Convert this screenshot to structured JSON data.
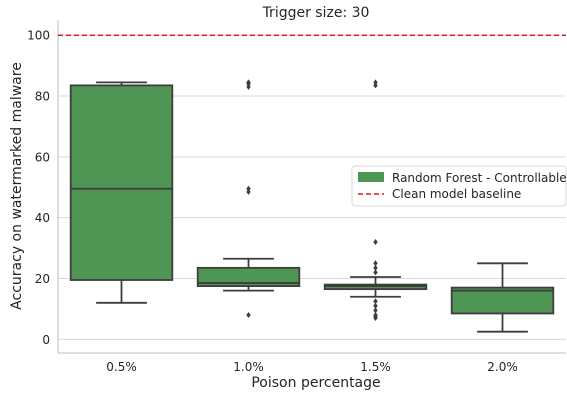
{
  "chart_data": {
    "type": "box",
    "title": "Trigger size: 30",
    "xlabel": "Poison percentage",
    "ylabel": "Accuracy on watermarked malware",
    "categories": [
      "0.5%",
      "1.0%",
      "1.5%",
      "2.0%"
    ],
    "ylim": [
      -4.5,
      105
    ],
    "yticks": [
      0,
      20,
      40,
      60,
      80,
      100
    ],
    "grid": "horizontal",
    "box_color": "#4f9553",
    "box_edge_color": "#3d3d3d",
    "series": [
      {
        "name": "Random Forest - Controllable",
        "boxes": [
          {
            "category": "0.5%",
            "whisker_low": 12,
            "q1": 19.5,
            "median": 49.5,
            "q3": 83.5,
            "whisker_high": 84.5,
            "outliers": []
          },
          {
            "category": "1.0%",
            "whisker_low": 16,
            "q1": 17.5,
            "median": 18.5,
            "q3": 23.5,
            "whisker_high": 26.5,
            "outliers": [
              8,
              48.5,
              49.5,
              83,
              84,
              84.5
            ]
          },
          {
            "category": "1.5%",
            "whisker_low": 14,
            "q1": 16.5,
            "median": 17.5,
            "q3": 18,
            "whisker_high": 20.5,
            "outliers": [
              7,
              7.5,
              8,
              9.5,
              11,
              12.5,
              22,
              23.5,
              25,
              32,
              83.5,
              84.5
            ]
          },
          {
            "category": "2.0%",
            "whisker_low": 2.5,
            "q1": 8.5,
            "median": 16,
            "q3": 17,
            "whisker_high": 25,
            "outliers": []
          }
        ]
      }
    ],
    "reference_line": {
      "name": "Clean model baseline",
      "y": 100,
      "color": "#e41a1c",
      "style": "dashed"
    },
    "legend": {
      "placement": "center-right",
      "entries": [
        "Random Forest - Controllable",
        "Clean model baseline"
      ]
    }
  }
}
